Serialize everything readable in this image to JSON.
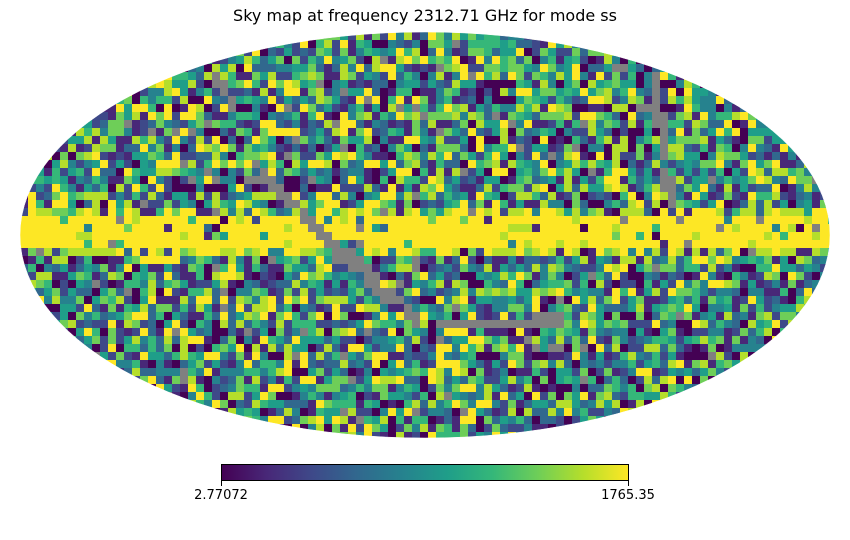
{
  "chart_data": {
    "type": "heatmap",
    "projection": "mollweide",
    "title": "Sky map at frequency 2312.71 GHz for mode ss",
    "colormap": "viridis",
    "colorbar": {
      "min": 2.77072,
      "max": 1765.35,
      "min_label": "2.77072",
      "max_label": "1765.35"
    },
    "badval_color": "#808080"
  }
}
